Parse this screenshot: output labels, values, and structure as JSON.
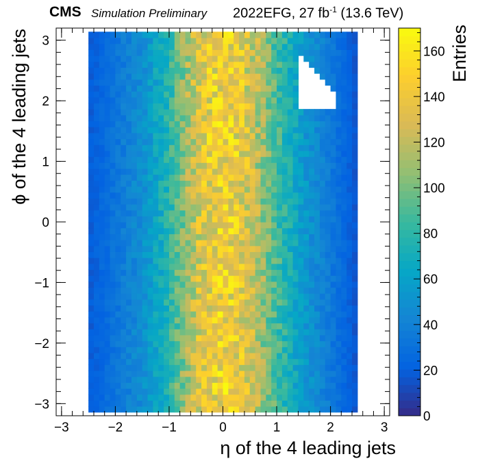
{
  "header": {
    "experiment": "CMS",
    "status": "Simulation Preliminary",
    "lumi_prefix": "2022EFG, 27 fb",
    "lumi_exp": "-1",
    "lumi_suffix": " (13.6 TeV)"
  },
  "chart_data": {
    "type": "heatmap",
    "xlabel": "η of the 4 leading jets",
    "ylabel": "ϕ of the 4 leading jets",
    "zlabel": "Entries",
    "xlim": [
      -3.1,
      3.1
    ],
    "ylim": [
      -3.2,
      3.2
    ],
    "zlim": [
      0,
      170
    ],
    "x_ticks": [
      -3,
      -2,
      -1,
      0,
      1,
      2,
      3
    ],
    "x_tick_labels": [
      "−3",
      "−2",
      "−1",
      "0",
      "1",
      "2",
      "3"
    ],
    "y_ticks": [
      -3,
      -2,
      -1,
      0,
      1,
      2,
      3
    ],
    "y_tick_labels": [
      "−3",
      "−2",
      "−1",
      "0",
      "1",
      "2",
      "3"
    ],
    "z_ticks": [
      0,
      20,
      40,
      60,
      80,
      100,
      120,
      140,
      160
    ],
    "z_tick_labels": [
      "0",
      "20",
      "40",
      "60",
      "80",
      "100",
      "120",
      "140",
      "160"
    ],
    "bins": {
      "x_range": [
        -2.5,
        2.5
      ],
      "x_count": 50,
      "y_range": [
        -3.14,
        3.14
      ],
      "y_count": 64
    },
    "eta_profile": {
      "eta": [
        -2.5,
        -2.0,
        -1.5,
        -1.0,
        -0.6,
        -0.3,
        0.0,
        0.3,
        0.6,
        1.0,
        1.5,
        2.0,
        2.5
      ],
      "entries": [
        18,
        32,
        48,
        78,
        118,
        138,
        145,
        138,
        120,
        88,
        55,
        35,
        15
      ]
    },
    "empty_region": {
      "description_of_bins": "no entries",
      "eta_range": [
        1.45,
        2.15
      ],
      "phi_range": [
        1.85,
        2.7
      ]
    },
    "palette": [
      "#352a87",
      "#0363e1",
      "#1485d4",
      "#06a7c6",
      "#38b99e",
      "#92bf73",
      "#d9ba56",
      "#fcce2e",
      "#f9fb0e"
    ]
  }
}
